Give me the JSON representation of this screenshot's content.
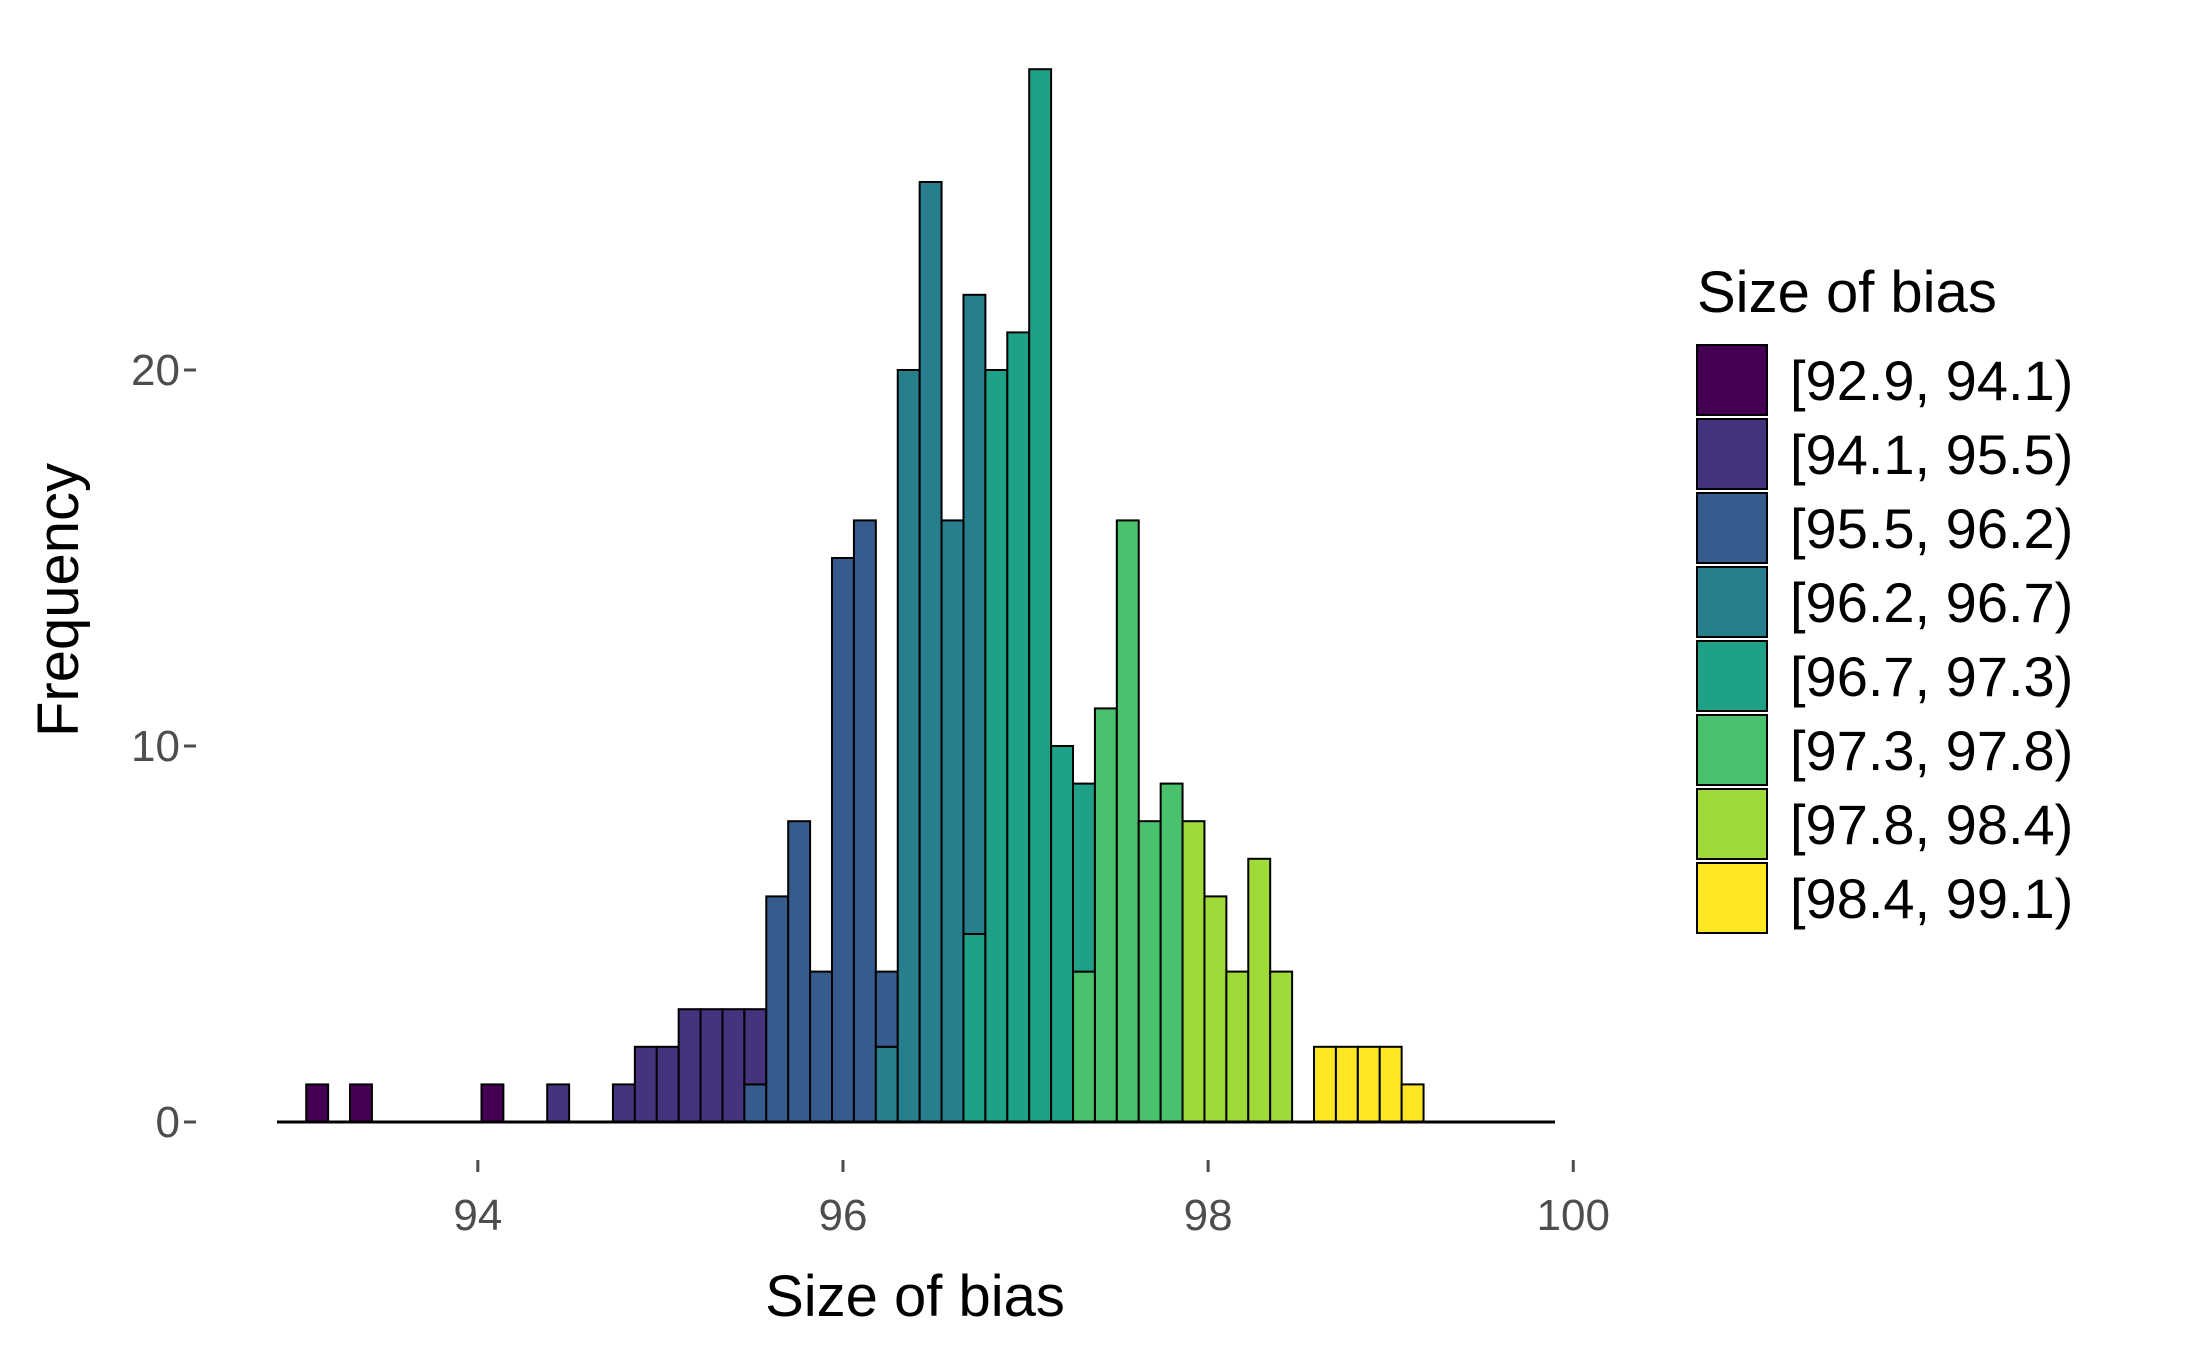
{
  "chart_data": {
    "type": "bar",
    "subtype": "histogram-stacked",
    "xlabel": "Size of bias",
    "ylabel": "Frequency",
    "xlim": [
      92.9,
      99.9
    ],
    "ylim": [
      0,
      28
    ],
    "grid": false,
    "legend_position": "right",
    "x_ticks": [
      {
        "value": 94,
        "label": "94"
      },
      {
        "value": 96,
        "label": "96"
      },
      {
        "value": 98,
        "label": "98"
      },
      {
        "value": 100,
        "label": "100"
      }
    ],
    "y_ticks": [
      {
        "value": 0,
        "label": "0"
      },
      {
        "value": 10,
        "label": "10"
      },
      {
        "value": 20,
        "label": "20"
      }
    ],
    "legend": {
      "title": "Size of bias",
      "entries": [
        {
          "label": "[92.9, 94.1)",
          "color": "#440154"
        },
        {
          "label": "[94.1, 95.5)",
          "color": "#46337E"
        },
        {
          "label": "[95.5, 96.2)",
          "color": "#365C8D"
        },
        {
          "label": "[96.2, 96.7)",
          "color": "#277F8E"
        },
        {
          "label": "[96.7, 97.3)",
          "color": "#1FA187"
        },
        {
          "label": "[97.3, 97.8)",
          "color": "#4AC16D"
        },
        {
          "label": "[97.8, 98.4)",
          "color": "#A0DA39"
        },
        {
          "label": "[98.4, 99.1)",
          "color": "#FDE725"
        }
      ]
    },
    "bin_width": 0.12,
    "bins": [
      {
        "x": 93.12,
        "segments": [
          {
            "group": 0,
            "count": 1
          }
        ]
      },
      {
        "x": 93.36,
        "segments": [
          {
            "group": 0,
            "count": 1
          }
        ]
      },
      {
        "x": 94.08,
        "segments": [
          {
            "group": 0,
            "count": 1
          }
        ]
      },
      {
        "x": 94.44,
        "segments": [
          {
            "group": 1,
            "count": 1
          }
        ]
      },
      {
        "x": 94.8,
        "segments": [
          {
            "group": 1,
            "count": 1
          }
        ]
      },
      {
        "x": 94.92,
        "segments": [
          {
            "group": 1,
            "count": 2
          }
        ]
      },
      {
        "x": 95.04,
        "segments": [
          {
            "group": 1,
            "count": 2
          }
        ]
      },
      {
        "x": 95.16,
        "segments": [
          {
            "group": 1,
            "count": 3
          }
        ]
      },
      {
        "x": 95.28,
        "segments": [
          {
            "group": 1,
            "count": 3
          }
        ]
      },
      {
        "x": 95.4,
        "segments": [
          {
            "group": 1,
            "count": 3
          }
        ]
      },
      {
        "x": 95.52,
        "segments": [
          {
            "group": 2,
            "count": 1
          },
          {
            "group": 1,
            "count": 2
          }
        ]
      },
      {
        "x": 95.64,
        "segments": [
          {
            "group": 2,
            "count": 6
          }
        ]
      },
      {
        "x": 95.76,
        "segments": [
          {
            "group": 2,
            "count": 8
          }
        ]
      },
      {
        "x": 95.88,
        "segments": [
          {
            "group": 2,
            "count": 4
          }
        ]
      },
      {
        "x": 96.0,
        "segments": [
          {
            "group": 2,
            "count": 15
          }
        ]
      },
      {
        "x": 96.12,
        "segments": [
          {
            "group": 2,
            "count": 16
          }
        ]
      },
      {
        "x": 96.24,
        "segments": [
          {
            "group": 3,
            "count": 2
          },
          {
            "group": 2,
            "count": 2
          }
        ]
      },
      {
        "x": 96.36,
        "segments": [
          {
            "group": 3,
            "count": 20
          }
        ]
      },
      {
        "x": 96.48,
        "segments": [
          {
            "group": 3,
            "count": 25
          }
        ]
      },
      {
        "x": 96.6,
        "segments": [
          {
            "group": 3,
            "count": 16
          }
        ]
      },
      {
        "x": 96.72,
        "segments": [
          {
            "group": 4,
            "count": 5
          },
          {
            "group": 3,
            "count": 17
          }
        ]
      },
      {
        "x": 96.84,
        "segments": [
          {
            "group": 4,
            "count": 20
          }
        ]
      },
      {
        "x": 96.96,
        "segments": [
          {
            "group": 4,
            "count": 21
          }
        ]
      },
      {
        "x": 97.08,
        "segments": [
          {
            "group": 4,
            "count": 28
          }
        ]
      },
      {
        "x": 97.2,
        "segments": [
          {
            "group": 4,
            "count": 10
          }
        ]
      },
      {
        "x": 97.32,
        "segments": [
          {
            "group": 5,
            "count": 4
          },
          {
            "group": 4,
            "count": 5
          }
        ]
      },
      {
        "x": 97.44,
        "segments": [
          {
            "group": 5,
            "count": 11
          }
        ]
      },
      {
        "x": 97.56,
        "segments": [
          {
            "group": 5,
            "count": 16
          }
        ]
      },
      {
        "x": 97.68,
        "segments": [
          {
            "group": 5,
            "count": 8
          }
        ]
      },
      {
        "x": 97.8,
        "segments": [
          {
            "group": 5,
            "count": 9
          }
        ]
      },
      {
        "x": 97.92,
        "segments": [
          {
            "group": 6,
            "count": 8
          }
        ]
      },
      {
        "x": 98.04,
        "segments": [
          {
            "group": 6,
            "count": 6
          }
        ]
      },
      {
        "x": 98.16,
        "segments": [
          {
            "group": 6,
            "count": 4
          }
        ]
      },
      {
        "x": 98.28,
        "segments": [
          {
            "group": 6,
            "count": 7
          }
        ]
      },
      {
        "x": 98.4,
        "segments": [
          {
            "group": 6,
            "count": 4
          }
        ]
      },
      {
        "x": 98.64,
        "segments": [
          {
            "group": 7,
            "count": 2
          }
        ]
      },
      {
        "x": 98.76,
        "segments": [
          {
            "group": 7,
            "count": 2
          }
        ]
      },
      {
        "x": 98.88,
        "segments": [
          {
            "group": 7,
            "count": 2
          }
        ]
      },
      {
        "x": 99.0,
        "segments": [
          {
            "group": 7,
            "count": 2
          }
        ]
      },
      {
        "x": 99.12,
        "segments": [
          {
            "group": 7,
            "count": 1
          }
        ]
      }
    ]
  }
}
